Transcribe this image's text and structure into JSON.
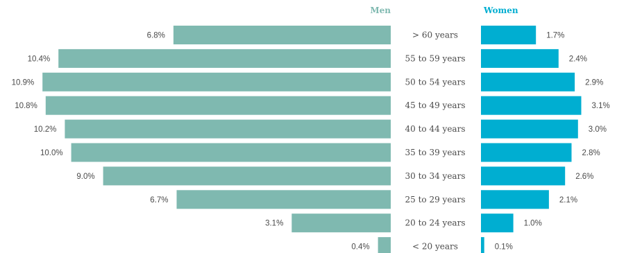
{
  "chart_data": {
    "type": "bar",
    "orientation": "horizontal",
    "layout": "population-pyramid",
    "categories": [
      "> 60 years",
      "55 to 59 years",
      "50 to 54 years",
      "45 to 49 years",
      "40 to 44 years",
      "35 to 39 years",
      "30 to 34 years",
      "25 to 29 years",
      "20 to 24 years",
      "< 20 years"
    ],
    "series": [
      {
        "name": "Men",
        "color": "#7fb9b0",
        "values": [
          6.8,
          10.4,
          10.9,
          10.8,
          10.2,
          10.0,
          9.0,
          6.7,
          3.1,
          0.4
        ],
        "labels": [
          "6.8%",
          "10.4%",
          "10.9%",
          "10.8%",
          "10.2%",
          "10.0%",
          "9.0%",
          "6.7%",
          "3.1%",
          "0.4%"
        ]
      },
      {
        "name": "Women",
        "color": "#00aed1",
        "values": [
          1.7,
          2.4,
          2.9,
          3.1,
          3.0,
          2.8,
          2.6,
          2.1,
          1.0,
          0.1
        ],
        "labels": [
          "1.7%",
          "2.4%",
          "2.9%",
          "3.1%",
          "3.0%",
          "2.8%",
          "2.6%",
          "2.1%",
          "1.0%",
          "0.1%"
        ]
      }
    ],
    "unit": "%",
    "legend_placement": "top",
    "grid": false
  }
}
